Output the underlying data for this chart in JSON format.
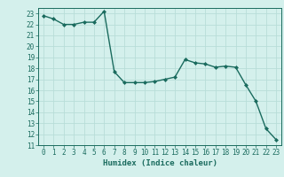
{
  "x": [
    0,
    1,
    2,
    3,
    4,
    5,
    6,
    7,
    8,
    9,
    10,
    11,
    12,
    13,
    14,
    15,
    16,
    17,
    18,
    19,
    20,
    21,
    22,
    23
  ],
  "y": [
    22.8,
    22.5,
    22.0,
    22.0,
    22.2,
    22.2,
    23.2,
    17.7,
    16.7,
    16.7,
    16.7,
    16.8,
    17.0,
    17.2,
    18.8,
    18.5,
    18.4,
    18.1,
    18.2,
    18.1,
    16.5,
    15.0,
    12.5,
    11.5
  ],
  "xlim": [
    -0.5,
    23.5
  ],
  "ylim": [
    11,
    23.5
  ],
  "yticks": [
    11,
    12,
    13,
    14,
    15,
    16,
    17,
    18,
    19,
    20,
    21,
    22,
    23
  ],
  "xticks": [
    0,
    1,
    2,
    3,
    4,
    5,
    6,
    7,
    8,
    9,
    10,
    11,
    12,
    13,
    14,
    15,
    16,
    17,
    18,
    19,
    20,
    21,
    22,
    23
  ],
  "xlabel": "Humidex (Indice chaleur)",
  "line_color": "#1a6b5e",
  "marker": "D",
  "marker_size": 2.0,
  "line_width": 1.0,
  "bg_color": "#d4f0ec",
  "grid_color": "#b8ddd8",
  "axis_color": "#1a6b5e",
  "tick_color": "#1a6b5e",
  "label_fontsize": 6.5,
  "tick_fontsize": 5.5
}
